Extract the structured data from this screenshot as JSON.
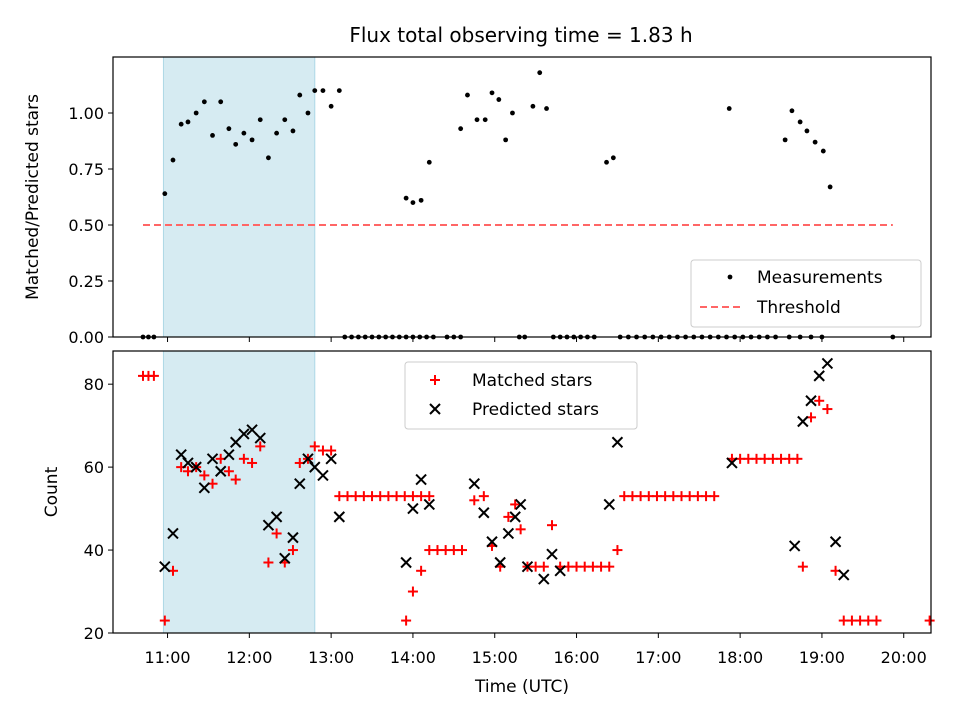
{
  "chart_data": [
    {
      "type": "scatter",
      "title": "Flux total observing time = 1.83 h",
      "xlabel": "",
      "ylabel": "Matched/Predicted stars",
      "xlim": [
        "10:20",
        "20:20"
      ],
      "ylim": [
        0,
        1.25
      ],
      "yticks": [
        "0.00",
        "0.25",
        "0.50",
        "0.75",
        "1.00"
      ],
      "highlight_span": {
        "start": "10:57",
        "end": "12:48",
        "color": "#add8e6"
      },
      "threshold": {
        "name": "Threshold",
        "value": 0.5,
        "x_start": "10:42",
        "x_end": "19:52",
        "color": "#ff6666"
      },
      "legend_position": "lower right",
      "series": [
        {
          "name": "Measurements",
          "color": "#000000",
          "marker": "dot",
          "points": [
            [
              "10:42",
              0
            ],
            [
              "10:46",
              0
            ],
            [
              "10:50",
              0
            ],
            [
              "10:58",
              0.64
            ],
            [
              "11:04",
              0.79
            ],
            [
              "11:10",
              0.95
            ],
            [
              "11:15",
              0.96
            ],
            [
              "11:21",
              1.0
            ],
            [
              "11:27",
              1.05
            ],
            [
              "11:33",
              0.9
            ],
            [
              "11:39",
              1.05
            ],
            [
              "11:45",
              0.93
            ],
            [
              "11:50",
              0.86
            ],
            [
              "11:56",
              0.91
            ],
            [
              "12:02",
              0.88
            ],
            [
              "12:08",
              0.97
            ],
            [
              "12:14",
              0.8
            ],
            [
              "12:20",
              0.91
            ],
            [
              "12:26",
              0.97
            ],
            [
              "12:32",
              0.92
            ],
            [
              "12:37",
              1.08
            ],
            [
              "12:43",
              1.0
            ],
            [
              "12:48",
              1.1
            ],
            [
              "12:54",
              1.1
            ],
            [
              "13:00",
              1.03
            ],
            [
              "13:06",
              1.1
            ],
            [
              "13:10",
              0
            ],
            [
              "13:15",
              0
            ],
            [
              "13:20",
              0
            ],
            [
              "13:25",
              0
            ],
            [
              "13:30",
              0
            ],
            [
              "13:35",
              0
            ],
            [
              "13:40",
              0
            ],
            [
              "13:45",
              0
            ],
            [
              "13:50",
              0
            ],
            [
              "13:55",
              0
            ],
            [
              "14:00",
              0
            ],
            [
              "14:05",
              0
            ],
            [
              "14:10",
              0
            ],
            [
              "13:55",
              0.62
            ],
            [
              "14:00",
              0.6
            ],
            [
              "14:06",
              0.61
            ],
            [
              "14:12",
              0.78
            ],
            [
              "14:15",
              0
            ],
            [
              "14:25",
              0
            ],
            [
              "14:30",
              0
            ],
            [
              "14:35",
              0
            ],
            [
              "14:35",
              0.93
            ],
            [
              "14:40",
              1.08
            ],
            [
              "14:47",
              0.97
            ],
            [
              "14:53",
              0.97
            ],
            [
              "14:58",
              1.09
            ],
            [
              "15:03",
              1.06
            ],
            [
              "15:08",
              0.88
            ],
            [
              "15:13",
              1.0
            ],
            [
              "15:28",
              1.03
            ],
            [
              "15:33",
              1.18
            ],
            [
              "15:38",
              1.02
            ],
            [
              "15:18",
              0
            ],
            [
              "15:22",
              0
            ],
            [
              "15:43",
              0
            ],
            [
              "15:48",
              0
            ],
            [
              "15:53",
              0
            ],
            [
              "15:58",
              0
            ],
            [
              "16:03",
              0
            ],
            [
              "16:08",
              0
            ],
            [
              "16:13",
              0
            ],
            [
              "16:22",
              0.78
            ],
            [
              "16:27",
              0.8
            ],
            [
              "16:32",
              0
            ],
            [
              "16:38",
              0
            ],
            [
              "16:44",
              0
            ],
            [
              "16:50",
              0
            ],
            [
              "16:56",
              0
            ],
            [
              "17:02",
              0
            ],
            [
              "17:08",
              0
            ],
            [
              "17:14",
              0
            ],
            [
              "17:20",
              0
            ],
            [
              "17:26",
              0
            ],
            [
              "17:32",
              0
            ],
            [
              "17:38",
              0
            ],
            [
              "17:44",
              0
            ],
            [
              "17:50",
              0
            ],
            [
              "17:56",
              0
            ],
            [
              "18:02",
              0
            ],
            [
              "18:08",
              0
            ],
            [
              "18:14",
              0
            ],
            [
              "18:20",
              0
            ],
            [
              "18:26",
              0
            ],
            [
              "17:52",
              1.02
            ],
            [
              "18:33",
              0.88
            ],
            [
              "18:38",
              1.01
            ],
            [
              "18:44",
              0.96
            ],
            [
              "18:49",
              0.92
            ],
            [
              "18:55",
              0.87
            ],
            [
              "19:01",
              0.83
            ],
            [
              "19:06",
              0.67
            ],
            [
              "18:36",
              0
            ],
            [
              "18:44",
              0
            ],
            [
              "18:52",
              0
            ],
            [
              "19:00",
              0
            ],
            [
              "19:52",
              0
            ]
          ]
        }
      ]
    },
    {
      "type": "scatter",
      "title": "",
      "xlabel": "Time (UTC)",
      "ylabel": "Count",
      "xlim": [
        "10:20",
        "20:20"
      ],
      "ylim": [
        20,
        88
      ],
      "yticks": [
        "20",
        "40",
        "60",
        "80"
      ],
      "xticks": [
        "11:00",
        "12:00",
        "13:00",
        "14:00",
        "15:00",
        "16:00",
        "17:00",
        "18:00",
        "19:00",
        "20:00"
      ],
      "highlight_span": {
        "start": "10:57",
        "end": "12:48",
        "color": "#add8e6"
      },
      "legend_position": "upper center",
      "series": [
        {
          "name": "Matched stars",
          "color": "#ff0000",
          "marker": "plus",
          "points": [
            [
              "10:42",
              82
            ],
            [
              "10:46",
              82
            ],
            [
              "10:50",
              82
            ],
            [
              "10:58",
              23
            ],
            [
              "11:04",
              35
            ],
            [
              "11:10",
              60
            ],
            [
              "11:15",
              59
            ],
            [
              "11:21",
              60
            ],
            [
              "11:27",
              58
            ],
            [
              "11:33",
              56
            ],
            [
              "11:39",
              62
            ],
            [
              "11:45",
              59
            ],
            [
              "11:50",
              57
            ],
            [
              "11:56",
              62
            ],
            [
              "12:02",
              61
            ],
            [
              "12:08",
              65
            ],
            [
              "12:14",
              37
            ],
            [
              "12:20",
              44
            ],
            [
              "12:26",
              37
            ],
            [
              "12:32",
              40
            ],
            [
              "12:37",
              61
            ],
            [
              "12:43",
              62
            ],
            [
              "12:48",
              65
            ],
            [
              "12:54",
              64
            ],
            [
              "13:00",
              64
            ],
            [
              "13:06",
              53
            ],
            [
              "13:12",
              53
            ],
            [
              "13:18",
              53
            ],
            [
              "13:24",
              53
            ],
            [
              "13:30",
              53
            ],
            [
              "13:36",
              53
            ],
            [
              "13:42",
              53
            ],
            [
              "13:48",
              53
            ],
            [
              "13:54",
              53
            ],
            [
              "14:00",
              53
            ],
            [
              "14:06",
              53
            ],
            [
              "14:12",
              53
            ],
            [
              "13:55",
              23
            ],
            [
              "14:00",
              30
            ],
            [
              "14:06",
              35
            ],
            [
              "14:12",
              40
            ],
            [
              "14:18",
              40
            ],
            [
              "14:24",
              40
            ],
            [
              "14:30",
              40
            ],
            [
              "14:36",
              40
            ],
            [
              "14:45",
              52
            ],
            [
              "14:52",
              53
            ],
            [
              "14:58",
              41
            ],
            [
              "15:04",
              36
            ],
            [
              "15:10",
              48
            ],
            [
              "15:15",
              51
            ],
            [
              "15:19",
              45
            ],
            [
              "15:24",
              36
            ],
            [
              "15:30",
              36
            ],
            [
              "15:36",
              36
            ],
            [
              "15:42",
              46
            ],
            [
              "15:48",
              36
            ],
            [
              "15:54",
              36
            ],
            [
              "16:00",
              36
            ],
            [
              "16:06",
              36
            ],
            [
              "16:12",
              36
            ],
            [
              "16:18",
              36
            ],
            [
              "16:24",
              36
            ],
            [
              "16:30",
              40
            ],
            [
              "16:35",
              53
            ],
            [
              "16:41",
              53
            ],
            [
              "16:47",
              53
            ],
            [
              "16:53",
              53
            ],
            [
              "16:59",
              53
            ],
            [
              "17:05",
              53
            ],
            [
              "17:11",
              53
            ],
            [
              "17:17",
              53
            ],
            [
              "17:23",
              53
            ],
            [
              "17:29",
              53
            ],
            [
              "17:35",
              53
            ],
            [
              "17:41",
              53
            ],
            [
              "17:54",
              62
            ],
            [
              "18:00",
              62
            ],
            [
              "18:06",
              62
            ],
            [
              "18:12",
              62
            ],
            [
              "18:18",
              62
            ],
            [
              "18:24",
              62
            ],
            [
              "18:30",
              62
            ],
            [
              "18:36",
              62
            ],
            [
              "18:42",
              62
            ],
            [
              "18:46",
              36
            ],
            [
              "18:52",
              72
            ],
            [
              "18:58",
              76
            ],
            [
              "19:04",
              74
            ],
            [
              "19:10",
              35
            ],
            [
              "19:16",
              23
            ],
            [
              "19:22",
              23
            ],
            [
              "19:28",
              23
            ],
            [
              "19:34",
              23
            ],
            [
              "19:40",
              23
            ],
            [
              "20:19",
              23
            ]
          ]
        },
        {
          "name": "Predicted stars",
          "color": "#000000",
          "marker": "x",
          "points": [
            [
              "10:58",
              36
            ],
            [
              "11:04",
              44
            ],
            [
              "11:10",
              63
            ],
            [
              "11:15",
              61
            ],
            [
              "11:21",
              60
            ],
            [
              "11:27",
              55
            ],
            [
              "11:33",
              62
            ],
            [
              "11:39",
              59
            ],
            [
              "11:45",
              63
            ],
            [
              "11:50",
              66
            ],
            [
              "11:56",
              68
            ],
            [
              "12:02",
              69
            ],
            [
              "12:08",
              67
            ],
            [
              "12:14",
              46
            ],
            [
              "12:20",
              48
            ],
            [
              "12:26",
              38
            ],
            [
              "12:32",
              43
            ],
            [
              "12:37",
              56
            ],
            [
              "12:43",
              62
            ],
            [
              "12:48",
              60
            ],
            [
              "12:54",
              58
            ],
            [
              "13:00",
              62
            ],
            [
              "13:06",
              48
            ],
            [
              "13:55",
              37
            ],
            [
              "14:00",
              50
            ],
            [
              "14:06",
              57
            ],
            [
              "14:12",
              51
            ],
            [
              "14:45",
              56
            ],
            [
              "14:52",
              49
            ],
            [
              "14:58",
              42
            ],
            [
              "15:04",
              37
            ],
            [
              "15:10",
              44
            ],
            [
              "15:15",
              48
            ],
            [
              "15:19",
              51
            ],
            [
              "15:24",
              36
            ],
            [
              "15:36",
              33
            ],
            [
              "15:42",
              39
            ],
            [
              "15:48",
              35
            ],
            [
              "16:24",
              51
            ],
            [
              "16:30",
              66
            ],
            [
              "17:54",
              61
            ],
            [
              "18:40",
              41
            ],
            [
              "18:46",
              71
            ],
            [
              "18:52",
              76
            ],
            [
              "18:58",
              82
            ],
            [
              "19:04",
              85
            ],
            [
              "19:10",
              42
            ],
            [
              "19:16",
              34
            ]
          ]
        }
      ]
    }
  ]
}
